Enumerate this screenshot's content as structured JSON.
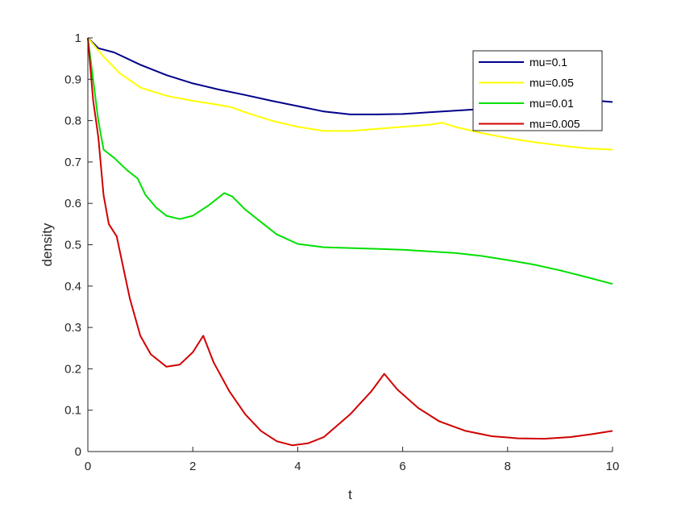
{
  "chart_data": {
    "type": "line",
    "title": "",
    "xlabel": "t",
    "ylabel": "density",
    "xlim": [
      0,
      10
    ],
    "ylim": [
      0,
      1
    ],
    "xticks": [
      "0",
      "2",
      "4",
      "6",
      "8",
      "10"
    ],
    "yticks": [
      "0",
      "0.1",
      "0.2",
      "0.3",
      "0.4",
      "0.5",
      "0.6",
      "0.7",
      "0.8",
      "0.9",
      "1"
    ],
    "grid": false,
    "legend_position": "top-right",
    "series": [
      {
        "name": "mu=0.1",
        "color": "#00008B",
        "points": [
          [
            0,
            1.0
          ],
          [
            0.2,
            0.975
          ],
          [
            0.5,
            0.965
          ],
          [
            1.0,
            0.935
          ],
          [
            1.5,
            0.91
          ],
          [
            2.0,
            0.89
          ],
          [
            2.5,
            0.875
          ],
          [
            3.0,
            0.862
          ],
          [
            3.5,
            0.848
          ],
          [
            4.0,
            0.835
          ],
          [
            4.5,
            0.822
          ],
          [
            5.0,
            0.815
          ],
          [
            5.5,
            0.815
          ],
          [
            6.0,
            0.816
          ],
          [
            6.5,
            0.82
          ],
          [
            7.0,
            0.824
          ],
          [
            7.5,
            0.828
          ],
          [
            8.0,
            0.835
          ],
          [
            8.5,
            0.842
          ],
          [
            9.0,
            0.848
          ],
          [
            9.5,
            0.85
          ],
          [
            10.0,
            0.845
          ]
        ]
      },
      {
        "name": "mu=0.05",
        "color": "#FFFF00",
        "points": [
          [
            0,
            1.0
          ],
          [
            0.3,
            0.955
          ],
          [
            0.6,
            0.915
          ],
          [
            1.0,
            0.88
          ],
          [
            1.5,
            0.86
          ],
          [
            2.0,
            0.848
          ],
          [
            2.5,
            0.838
          ],
          [
            2.75,
            0.832
          ],
          [
            3.0,
            0.82
          ],
          [
            3.5,
            0.8
          ],
          [
            4.0,
            0.785
          ],
          [
            4.5,
            0.775
          ],
          [
            5.0,
            0.775
          ],
          [
            5.5,
            0.78
          ],
          [
            6.0,
            0.785
          ],
          [
            6.5,
            0.79
          ],
          [
            6.75,
            0.795
          ],
          [
            7.0,
            0.785
          ],
          [
            7.5,
            0.77
          ],
          [
            8.0,
            0.758
          ],
          [
            8.5,
            0.748
          ],
          [
            9.0,
            0.74
          ],
          [
            9.5,
            0.733
          ],
          [
            10.0,
            0.73
          ]
        ]
      },
      {
        "name": "mu=0.01",
        "color": "#00E000",
        "points": [
          [
            0,
            1.0
          ],
          [
            0.1,
            0.9
          ],
          [
            0.2,
            0.8
          ],
          [
            0.3,
            0.73
          ],
          [
            0.5,
            0.71
          ],
          [
            0.75,
            0.68
          ],
          [
            0.95,
            0.66
          ],
          [
            1.1,
            0.62
          ],
          [
            1.3,
            0.59
          ],
          [
            1.5,
            0.57
          ],
          [
            1.75,
            0.562
          ],
          [
            2.0,
            0.57
          ],
          [
            2.3,
            0.595
          ],
          [
            2.6,
            0.625
          ],
          [
            2.75,
            0.617
          ],
          [
            3.0,
            0.585
          ],
          [
            3.3,
            0.555
          ],
          [
            3.6,
            0.525
          ],
          [
            4.0,
            0.502
          ],
          [
            4.5,
            0.494
          ],
          [
            5.0,
            0.492
          ],
          [
            5.5,
            0.49
          ],
          [
            6.0,
            0.488
          ],
          [
            6.5,
            0.484
          ],
          [
            7.0,
            0.48
          ],
          [
            7.5,
            0.473
          ],
          [
            8.0,
            0.463
          ],
          [
            8.5,
            0.452
          ],
          [
            9.0,
            0.438
          ],
          [
            9.5,
            0.422
          ],
          [
            10.0,
            0.405
          ]
        ]
      },
      {
        "name": "mu=0.005",
        "color": "#D00000",
        "points": [
          [
            0,
            1.0
          ],
          [
            0.1,
            0.85
          ],
          [
            0.2,
            0.76
          ],
          [
            0.3,
            0.62
          ],
          [
            0.4,
            0.55
          ],
          [
            0.55,
            0.52
          ],
          [
            0.65,
            0.46
          ],
          [
            0.8,
            0.37
          ],
          [
            1.0,
            0.28
          ],
          [
            1.2,
            0.235
          ],
          [
            1.5,
            0.205
          ],
          [
            1.75,
            0.21
          ],
          [
            2.0,
            0.24
          ],
          [
            2.2,
            0.28
          ],
          [
            2.4,
            0.215
          ],
          [
            2.7,
            0.145
          ],
          [
            3.0,
            0.09
          ],
          [
            3.3,
            0.05
          ],
          [
            3.6,
            0.025
          ],
          [
            3.9,
            0.015
          ],
          [
            4.2,
            0.02
          ],
          [
            4.5,
            0.035
          ],
          [
            5.0,
            0.09
          ],
          [
            5.4,
            0.145
          ],
          [
            5.65,
            0.188
          ],
          [
            5.9,
            0.15
          ],
          [
            6.3,
            0.105
          ],
          [
            6.7,
            0.073
          ],
          [
            7.2,
            0.05
          ],
          [
            7.7,
            0.037
          ],
          [
            8.2,
            0.032
          ],
          [
            8.7,
            0.031
          ],
          [
            9.2,
            0.035
          ],
          [
            9.6,
            0.042
          ],
          [
            10.0,
            0.05
          ]
        ]
      }
    ]
  }
}
